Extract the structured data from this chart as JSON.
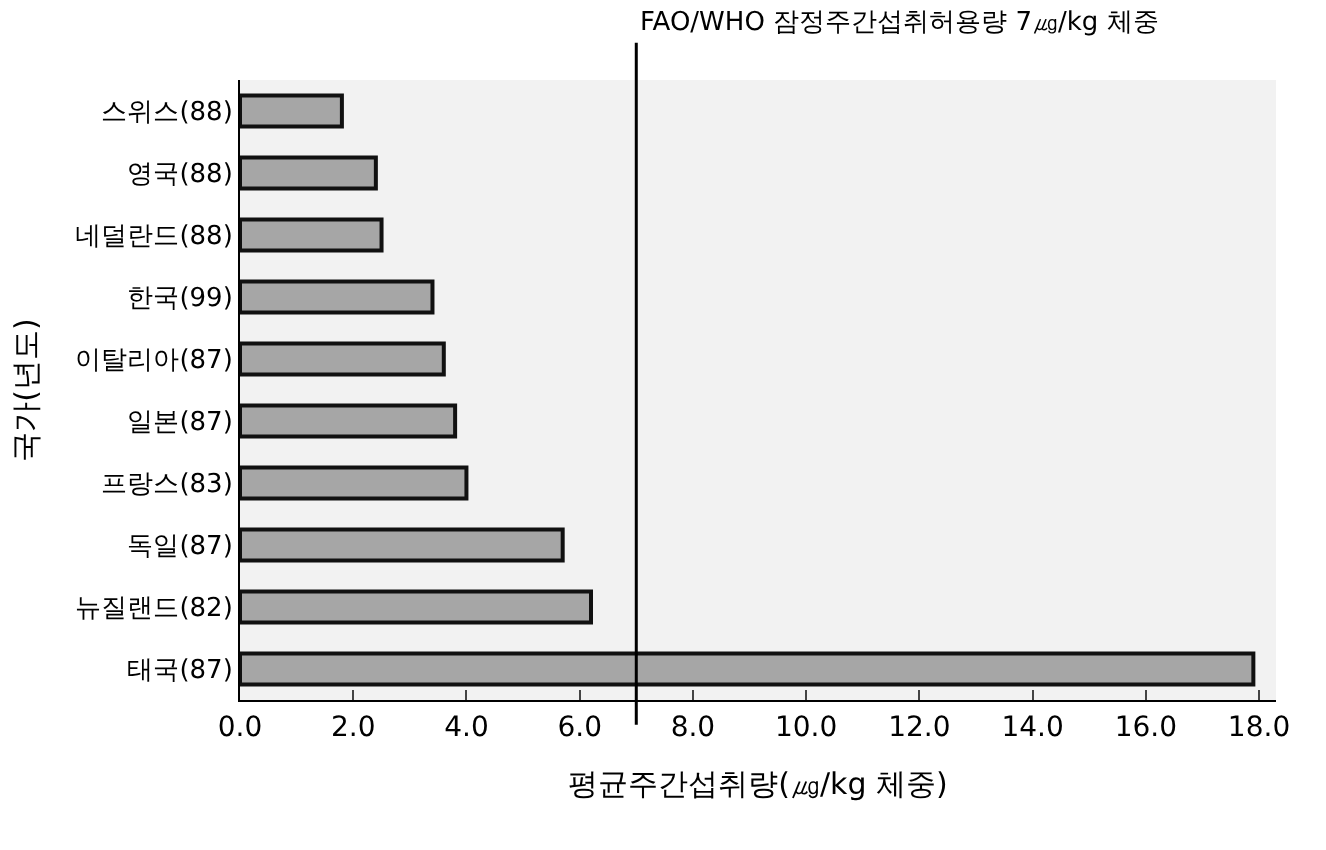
{
  "chart_data": {
    "type": "bar",
    "orientation": "horizontal",
    "xlabel": "평균주간섭취량(㎍/kg 체중)",
    "ylabel": "국가(년도)",
    "categories": [
      "스위스(88)",
      "영국(88)",
      "네덜란드(88)",
      "한국(99)",
      "이탈리아(87)",
      "일본(87)",
      "프랑스(83)",
      "독일(87)",
      "뉴질랜드(82)",
      "태국(87)"
    ],
    "values": [
      1.8,
      2.4,
      2.5,
      3.4,
      3.6,
      3.8,
      4.0,
      5.7,
      6.2,
      17.9
    ],
    "color": "#a6a6a6",
    "xlim": [
      0,
      18.3
    ],
    "xticks": [
      {
        "value": 0,
        "label": "0.0"
      },
      {
        "value": 2,
        "label": "2.0"
      },
      {
        "value": 4,
        "label": "4.0"
      },
      {
        "value": 6,
        "label": "6.0"
      },
      {
        "value": 8,
        "label": "8.0"
      },
      {
        "value": 10,
        "label": "10.0"
      },
      {
        "value": 12,
        "label": "12.0"
      },
      {
        "value": 14,
        "label": "14.0"
      },
      {
        "value": 16,
        "label": "16.0"
      },
      {
        "value": 18,
        "label": "18.0"
      }
    ],
    "ref_lines": [
      {
        "axis": "x",
        "value": 7,
        "label": "FAO/WHO 잠정주간섭취허용량 7㎍/kg 체중",
        "color": "#000000",
        "line_style": "solid"
      }
    ],
    "grid": false
  }
}
